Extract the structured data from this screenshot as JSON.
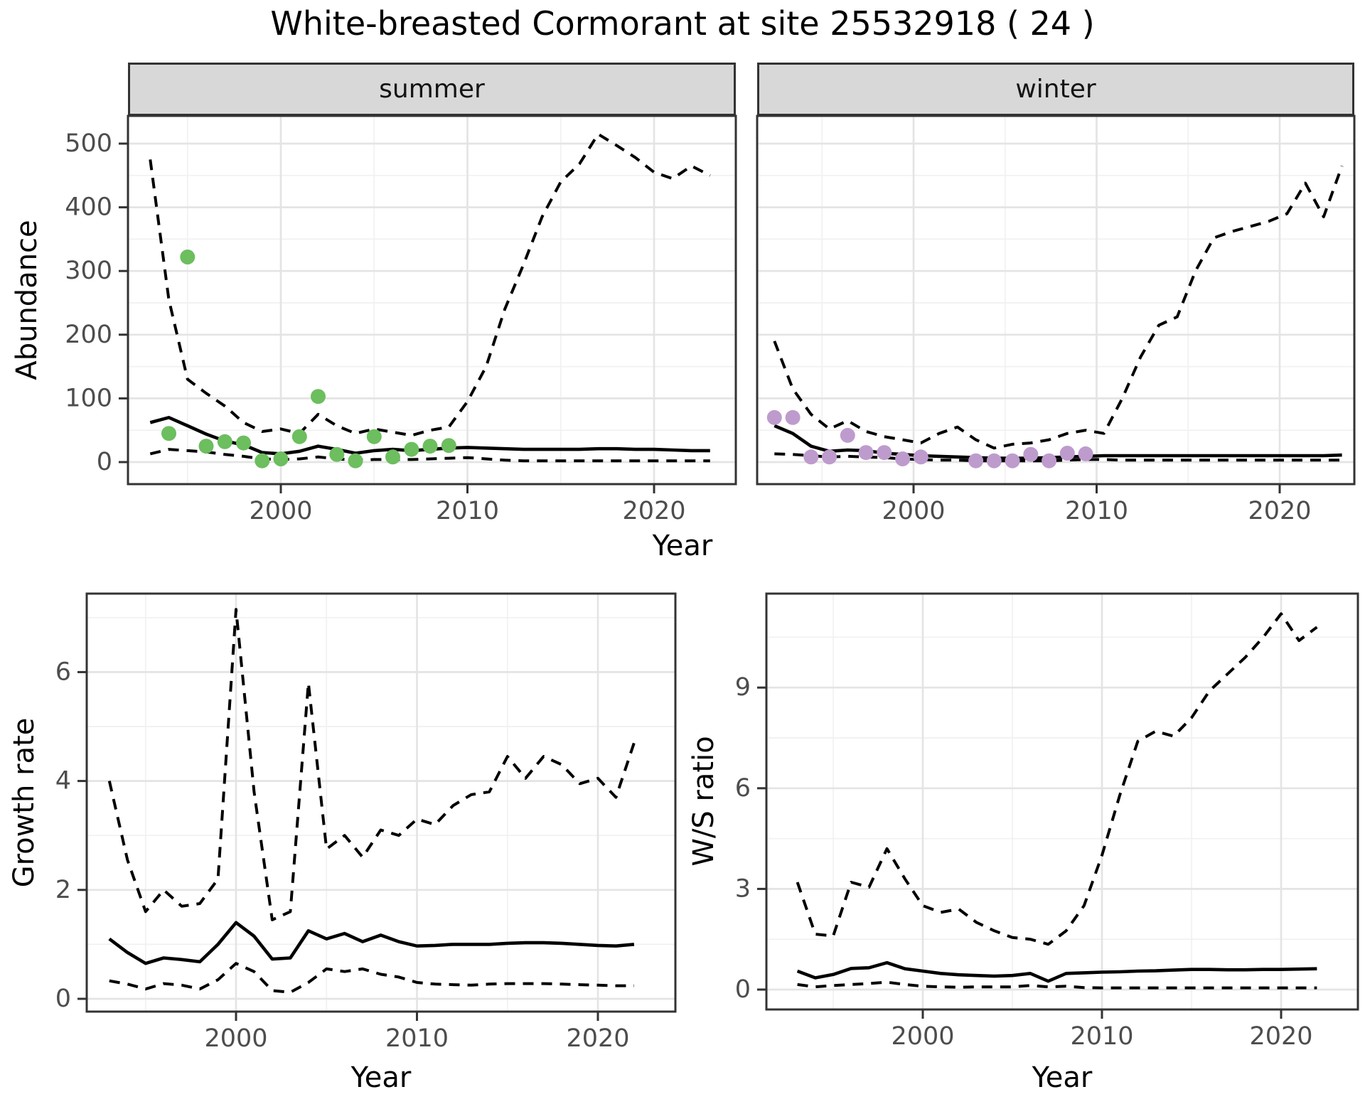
{
  "title": "White-breasted Cormorant at site 25532918 ( 24 )",
  "colors": {
    "summer_points": "#6CBE5E",
    "winter_points": "#BE9BCD",
    "line": "#000000",
    "axis_text": "#4D4D4D",
    "strip_background": "#D8D8D8",
    "panel_border": "#333333",
    "grid_major": "#E4E4E4",
    "grid_minor": "#F1F1F1"
  },
  "top_row": {
    "ylabel": "Abundance",
    "xlabel": "Year",
    "facets": [
      "summer",
      "winter"
    ]
  },
  "chart_data": [
    {
      "type": "line",
      "panel": "abundance-summer",
      "facet": "summer",
      "xlabel": "Year",
      "ylabel": "Abundance",
      "xlim": [
        1991.5,
        2024.5
      ],
      "ylim": [
        -25,
        545
      ],
      "x_ticks": [
        2000,
        2010,
        2020
      ],
      "y_ticks": [
        500,
        400,
        300,
        200,
        100,
        0
      ],
      "x_minor": [
        1995,
        2005,
        2015
      ],
      "y_minor": [
        50,
        150,
        250,
        350,
        450
      ],
      "grid": true,
      "legend": "none",
      "series": [
        {
          "name": "ci_upper",
          "style": "dashed",
          "x": [
            1993,
            1994,
            1995,
            1996,
            1997,
            1998,
            1999,
            2000,
            2001,
            2002,
            2003,
            2004,
            2005,
            2006,
            2007,
            2008,
            2009,
            2010,
            2011,
            2012,
            2013,
            2014,
            2015,
            2016,
            2017,
            2018,
            2019,
            2020,
            2021,
            2022,
            2023
          ],
          "y": [
            475,
            255,
            130,
            108,
            88,
            62,
            48,
            52,
            45,
            75,
            57,
            45,
            52,
            47,
            42,
            50,
            55,
            95,
            150,
            240,
            310,
            385,
            440,
            468,
            515,
            497,
            478,
            455,
            445,
            465,
            450
          ]
        },
        {
          "name": "median",
          "style": "solid",
          "x": [
            1993,
            1994,
            1995,
            1996,
            1997,
            1998,
            1999,
            2000,
            2001,
            2002,
            2003,
            2004,
            2005,
            2006,
            2007,
            2008,
            2009,
            2010,
            2011,
            2012,
            2013,
            2014,
            2015,
            2016,
            2017,
            2018,
            2019,
            2020,
            2021,
            2022,
            2023
          ],
          "y": [
            62,
            70,
            57,
            44,
            33,
            27,
            15,
            13,
            17,
            25,
            20,
            14,
            18,
            20,
            18,
            20,
            22,
            23,
            22,
            21,
            20,
            20,
            20,
            20,
            21,
            21,
            20,
            20,
            19,
            18,
            18
          ]
        },
        {
          "name": "ci_lower",
          "style": "dashed",
          "x": [
            1993,
            1994,
            1995,
            1996,
            1997,
            1998,
            1999,
            2000,
            2001,
            2002,
            2003,
            2004,
            2005,
            2006,
            2007,
            2008,
            2009,
            2010,
            2011,
            2012,
            2013,
            2014,
            2015,
            2016,
            2017,
            2018,
            2019,
            2020,
            2021,
            2022,
            2023
          ],
          "y": [
            13,
            20,
            18,
            16,
            12,
            9,
            5,
            4,
            5,
            8,
            5,
            3,
            4,
            4,
            4,
            5,
            6,
            7,
            5,
            3,
            2,
            2,
            2,
            2,
            2,
            2,
            2,
            2,
            2,
            2,
            2
          ]
        },
        {
          "name": "observed",
          "style": "points",
          "color": "#6CBE5E",
          "x": [
            1994,
            1995,
            1996,
            1997,
            1998,
            1999,
            2000,
            2001,
            2002,
            2003,
            2004,
            2005,
            2006,
            2007,
            2008,
            2009
          ],
          "y": [
            45,
            322,
            25,
            32,
            30,
            2,
            5,
            40,
            103,
            12,
            2,
            40,
            8,
            20,
            25,
            26
          ]
        }
      ]
    },
    {
      "type": "line",
      "panel": "abundance-winter",
      "facet": "winter",
      "xlabel": "Year",
      "ylabel": "Abundance",
      "xlim": [
        1991.5,
        2024.5
      ],
      "ylim": [
        -25,
        545
      ],
      "x_ticks": [
        2000,
        2010,
        2020
      ],
      "y_ticks": [
        500,
        400,
        300,
        200,
        100,
        0
      ],
      "x_minor": [
        1995,
        2005,
        2015
      ],
      "y_minor": [
        50,
        150,
        250,
        350,
        450
      ],
      "grid": true,
      "legend": "none",
      "series": [
        {
          "name": "ci_upper",
          "style": "dashed",
          "x": [
            1992.4,
            1993.4,
            1994.4,
            1995.4,
            1996.4,
            1997.4,
            1998.4,
            1999.4,
            2000.4,
            2001.4,
            2002.4,
            2003.4,
            2004.4,
            2005.4,
            2006.4,
            2007.4,
            2008.4,
            2009.4,
            2010.4,
            2011.4,
            2012.4,
            2013.4,
            2014.4,
            2015.4,
            2016.4,
            2017.4,
            2018.4,
            2019.4,
            2020.4,
            2021.4,
            2022.4,
            2023.4
          ],
          "y": [
            190,
            115,
            75,
            52,
            65,
            48,
            40,
            35,
            30,
            45,
            55,
            35,
            22,
            28,
            30,
            35,
            45,
            50,
            45,
            100,
            165,
            215,
            228,
            300,
            352,
            362,
            370,
            378,
            390,
            438,
            385,
            465
          ]
        },
        {
          "name": "median",
          "style": "solid",
          "x": [
            1992.4,
            1993.4,
            1994.4,
            1995.4,
            1996.4,
            1997.4,
            1998.4,
            1999.4,
            2000.4,
            2001.4,
            2002.4,
            2003.4,
            2004.4,
            2005.4,
            2006.4,
            2007.4,
            2008.4,
            2009.4,
            2010.4,
            2011.4,
            2012.4,
            2013.4,
            2014.4,
            2015.4,
            2016.4,
            2017.4,
            2018.4,
            2019.4,
            2020.4,
            2021.4,
            2022.4,
            2023.4
          ],
          "y": [
            57,
            45,
            25,
            17,
            19,
            18,
            14,
            12,
            10,
            9,
            8,
            7,
            6,
            6,
            6,
            7,
            8,
            9,
            10,
            10,
            10,
            10,
            10,
            10,
            10,
            10,
            10,
            10,
            10,
            10,
            10,
            11
          ]
        },
        {
          "name": "ci_lower",
          "style": "dashed",
          "x": [
            1992.4,
            1993.4,
            1994.4,
            1995.4,
            1996.4,
            1997.4,
            1998.4,
            1999.4,
            2000.4,
            2001.4,
            2002.4,
            2003.4,
            2004.4,
            2005.4,
            2006.4,
            2007.4,
            2008.4,
            2009.4,
            2010.4,
            2011.4,
            2012.4,
            2013.4,
            2014.4,
            2015.4,
            2016.4,
            2017.4,
            2018.4,
            2019.4,
            2020.4,
            2021.4,
            2022.4,
            2023.4
          ],
          "y": [
            13,
            12,
            10,
            8,
            9,
            8,
            7,
            5,
            4,
            3,
            3,
            2,
            2,
            2,
            2,
            2,
            3,
            4,
            4,
            3,
            3,
            3,
            3,
            3,
            3,
            3,
            3,
            3,
            3,
            3,
            3,
            3
          ]
        },
        {
          "name": "observed",
          "style": "points",
          "color": "#BE9BCD",
          "x": [
            1992.4,
            1993.4,
            1994.4,
            1995.4,
            1996.4,
            1997.4,
            1998.4,
            1999.4,
            2000.4,
            2003.4,
            2004.4,
            2005.4,
            2006.4,
            2007.4,
            2008.4,
            2009.4
          ],
          "y": [
            70,
            70,
            8,
            8,
            42,
            15,
            15,
            5,
            8,
            2,
            2,
            2,
            12,
            2,
            14,
            13
          ]
        }
      ]
    },
    {
      "type": "line",
      "panel": "growth-rate",
      "xlabel": "Year",
      "ylabel": "Growth rate",
      "xlim": [
        1991.7,
        2024.3
      ],
      "ylim": [
        -0.25,
        7.45
      ],
      "x_ticks": [
        2000,
        2010,
        2020
      ],
      "y_ticks": [
        6,
        4,
        2,
        0
      ],
      "x_minor": [
        1995,
        2005,
        2015
      ],
      "y_minor": [
        1,
        3,
        5,
        7
      ],
      "grid": true,
      "legend": "none",
      "series": [
        {
          "name": "ci_upper",
          "style": "dashed",
          "x": [
            1993,
            1994,
            1995,
            1996,
            1997,
            1998,
            1999,
            2000,
            2001,
            2002,
            2003,
            2004,
            2005,
            2006,
            2007,
            2008,
            2009,
            2010,
            2011,
            2012,
            2013,
            2014,
            2015,
            2016,
            2017,
            2018,
            2019,
            2020,
            2021,
            2022
          ],
          "y": [
            4.0,
            2.55,
            1.6,
            2.0,
            1.7,
            1.75,
            2.2,
            7.15,
            3.8,
            1.45,
            1.6,
            5.8,
            2.75,
            3.0,
            2.6,
            3.1,
            3.0,
            3.3,
            3.2,
            3.55,
            3.75,
            3.8,
            4.45,
            4.05,
            4.45,
            4.3,
            3.95,
            4.05,
            3.7,
            4.7
          ]
        },
        {
          "name": "median",
          "style": "solid",
          "x": [
            1993,
            1994,
            1995,
            1996,
            1997,
            1998,
            1999,
            2000,
            2001,
            2002,
            2003,
            2004,
            2005,
            2006,
            2007,
            2008,
            2009,
            2010,
            2011,
            2012,
            2013,
            2014,
            2015,
            2016,
            2017,
            2018,
            2019,
            2020,
            2021,
            2022
          ],
          "y": [
            1.1,
            0.85,
            0.65,
            0.75,
            0.72,
            0.68,
            1.0,
            1.4,
            1.15,
            0.73,
            0.75,
            1.25,
            1.1,
            1.2,
            1.05,
            1.17,
            1.05,
            0.97,
            0.98,
            1.0,
            1.0,
            1.0,
            1.02,
            1.03,
            1.03,
            1.02,
            1.0,
            0.98,
            0.97,
            1.0
          ]
        },
        {
          "name": "ci_lower",
          "style": "dashed",
          "x": [
            1993,
            1994,
            1995,
            1996,
            1997,
            1998,
            1999,
            2000,
            2001,
            2002,
            2003,
            2004,
            2005,
            2006,
            2007,
            2008,
            2009,
            2010,
            2011,
            2012,
            2013,
            2014,
            2015,
            2016,
            2017,
            2018,
            2019,
            2020,
            2021,
            2022
          ],
          "y": [
            0.33,
            0.27,
            0.18,
            0.28,
            0.25,
            0.18,
            0.35,
            0.65,
            0.5,
            0.15,
            0.12,
            0.3,
            0.55,
            0.5,
            0.55,
            0.45,
            0.4,
            0.3,
            0.27,
            0.26,
            0.25,
            0.27,
            0.28,
            0.28,
            0.28,
            0.27,
            0.26,
            0.25,
            0.24,
            0.24
          ]
        }
      ]
    },
    {
      "type": "line",
      "panel": "ws-ratio",
      "xlabel": "Year",
      "ylabel": "W/S ratio",
      "xlim": [
        1991.7,
        2024.3
      ],
      "ylim": [
        -0.55,
        11.8
      ],
      "x_ticks": [
        2000,
        2010,
        2020
      ],
      "y_ticks": [
        9,
        6,
        3,
        0
      ],
      "x_minor": [
        1995,
        2005,
        2015
      ],
      "y_minor": [
        1.5,
        4.5,
        7.5,
        10.5
      ],
      "grid": true,
      "legend": "none",
      "series": [
        {
          "name": "ci_upper",
          "style": "dashed",
          "x": [
            1993,
            1994,
            1995,
            1996,
            1997,
            1998,
            1999,
            2000,
            2001,
            2002,
            2003,
            2004,
            2005,
            2006,
            2007,
            2008,
            2009,
            2010,
            2011,
            2012,
            2013,
            2014,
            2015,
            2016,
            2017,
            2018,
            2019,
            2020,
            2021,
            2022
          ],
          "y": [
            3.2,
            1.65,
            1.6,
            3.2,
            3.05,
            4.2,
            3.3,
            2.5,
            2.3,
            2.4,
            2.0,
            1.75,
            1.55,
            1.5,
            1.35,
            1.75,
            2.5,
            4.0,
            5.8,
            7.4,
            7.7,
            7.55,
            8.1,
            8.9,
            9.4,
            9.9,
            10.5,
            11.2,
            10.4,
            10.8
          ]
        },
        {
          "name": "median",
          "style": "solid",
          "x": [
            1993,
            1994,
            1995,
            1996,
            1997,
            1998,
            1999,
            2000,
            2001,
            2002,
            2003,
            2004,
            2005,
            2006,
            2007,
            2008,
            2009,
            2010,
            2011,
            2012,
            2013,
            2014,
            2015,
            2016,
            2017,
            2018,
            2019,
            2020,
            2021,
            2022
          ],
          "y": [
            0.55,
            0.35,
            0.45,
            0.63,
            0.65,
            0.8,
            0.62,
            0.55,
            0.48,
            0.44,
            0.42,
            0.4,
            0.42,
            0.48,
            0.25,
            0.48,
            0.5,
            0.52,
            0.53,
            0.55,
            0.56,
            0.58,
            0.6,
            0.6,
            0.59,
            0.59,
            0.6,
            0.6,
            0.61,
            0.62
          ]
        },
        {
          "name": "ci_lower",
          "style": "dashed",
          "x": [
            1993,
            1994,
            1995,
            1996,
            1997,
            1998,
            1999,
            2000,
            2001,
            2002,
            2003,
            2004,
            2005,
            2006,
            2007,
            2008,
            2009,
            2010,
            2011,
            2012,
            2013,
            2014,
            2015,
            2016,
            2017,
            2018,
            2019,
            2020,
            2021,
            2022
          ],
          "y": [
            0.15,
            0.08,
            0.12,
            0.15,
            0.18,
            0.22,
            0.15,
            0.1,
            0.08,
            0.07,
            0.08,
            0.08,
            0.08,
            0.12,
            0.08,
            0.1,
            0.06,
            0.05,
            0.05,
            0.05,
            0.05,
            0.05,
            0.05,
            0.05,
            0.05,
            0.05,
            0.05,
            0.05,
            0.05,
            0.05
          ]
        }
      ]
    }
  ]
}
